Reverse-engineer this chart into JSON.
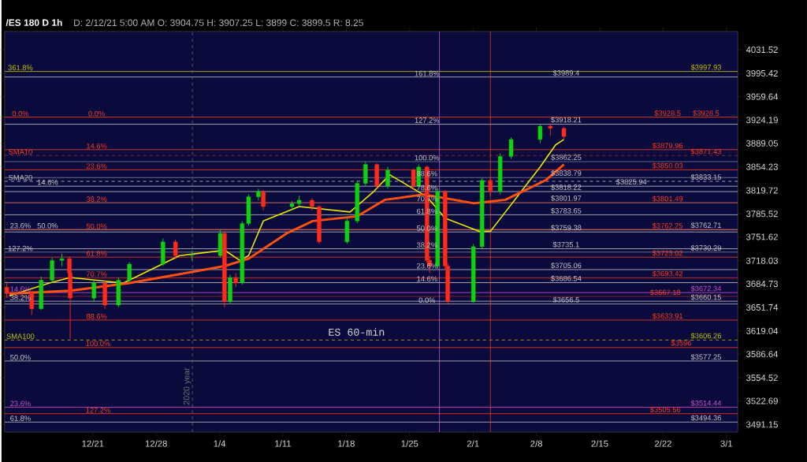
{
  "chart_data": {
    "type": "candlestick",
    "title": "/ES 180 D 1h",
    "subtitle": "D: 2/12/21 5:00 AM  O: 3904.75  H: 3907.25  L: 3899  C: 3899.5  R: 8.25",
    "x": [
      "2020-12-11T12:00",
      "2020-12-14T06:00",
      "2020-12-15T07:00",
      "2020-12-16T12:00",
      "2020-12-17T14:00",
      "2020-12-18T10:00",
      "2020-12-18T12:00",
      "2020-12-21T03:00",
      "2020-12-22T08:00",
      "2020-12-23T20:00",
      "2020-12-25T01:00",
      "2020-12-28T18:00",
      "2020-12-30T03:00",
      "2020-12-31T23:00",
      "2021-01-04T02:00",
      "2021-01-04T13:00",
      "2021-01-05T04:00",
      "2021-01-05T19:00",
      "2021-01-06T12:00",
      "2021-01-07T05:00",
      "2021-01-08T07:00",
      "2021-01-08T20:00",
      "2021-01-12T00:00",
      "2021-01-12T19:00",
      "2021-01-14T05:00",
      "2021-01-15T00:00",
      "2021-01-18T02:00",
      "2021-01-19T05:00",
      "2021-01-20T03:00",
      "2021-01-21T09:00",
      "2021-01-22T14:00",
      "2021-01-25T10:00",
      "2021-01-26T00:00",
      "2021-01-26T22:00",
      "2021-01-27T05:00",
      "2021-01-28T02:00",
      "2021-01-28T22:00",
      "2021-01-29T05:00",
      "2021-02-01T01:00",
      "2021-02-02T00:00",
      "2021-02-02T22:00",
      "2021-02-04T00:00",
      "2021-02-05T05:00",
      "2021-02-08T10:00",
      "2021-02-09T13:00",
      "2021-02-11T01:00"
    ],
    "ohlc": [
      [
        3680,
        3688,
        3665,
        3671
      ],
      [
        3671,
        3675,
        3641,
        3650
      ],
      [
        3650,
        3695,
        3648,
        3690
      ],
      [
        3690,
        3722,
        3686,
        3718
      ],
      [
        3718,
        3728,
        3710,
        3721
      ],
      [
        3721,
        3724,
        3696,
        3700
      ],
      [
        3700,
        3702,
        3608,
        3665
      ],
      [
        3665,
        3690,
        3660,
        3686
      ],
      [
        3686,
        3690,
        3650,
        3655
      ],
      [
        3655,
        3694,
        3652,
        3690
      ],
      [
        3690,
        3716,
        3686,
        3713
      ],
      [
        3713,
        3750,
        3710,
        3745
      ],
      [
        3745,
        3748,
        3720,
        3725
      ],
      [
        3725,
        3732,
        3718,
        3725
      ],
      [
        3725,
        3762,
        3722,
        3757
      ],
      [
        3757,
        3760,
        3652,
        3660
      ],
      [
        3660,
        3698,
        3656,
        3694
      ],
      [
        3694,
        3700,
        3680,
        3686
      ],
      [
        3686,
        3775,
        3684,
        3771
      ],
      [
        3771,
        3814,
        3768,
        3810
      ],
      [
        3810,
        3822,
        3805,
        3818
      ],
      [
        3818,
        3820,
        3790,
        3796
      ],
      [
        3796,
        3804,
        3790,
        3800
      ],
      [
        3800,
        3812,
        3796,
        3805
      ],
      [
        3805,
        3808,
        3790,
        3796
      ],
      [
        3796,
        3798,
        3742,
        3745
      ],
      [
        3745,
        3780,
        3742,
        3775
      ],
      [
        3775,
        3834,
        3772,
        3830
      ],
      [
        3830,
        3862,
        3826,
        3858
      ],
      [
        3858,
        3860,
        3822,
        3826
      ],
      [
        3826,
        3854,
        3822,
        3850
      ],
      [
        3850,
        3852,
        3820,
        3826
      ],
      [
        3826,
        3858,
        3824,
        3854
      ],
      [
        3854,
        3856,
        3714,
        3718
      ],
      [
        3718,
        3724,
        3700,
        3710
      ],
      [
        3710,
        3822,
        3706,
        3818
      ],
      [
        3818,
        3820,
        3706,
        3710
      ],
      [
        3710,
        3714,
        3656.5,
        3660
      ],
      [
        3660,
        3742,
        3658,
        3738
      ],
      [
        3738,
        3838,
        3734,
        3834
      ],
      [
        3834,
        3840,
        3812,
        3818
      ],
      [
        3818,
        3874,
        3814,
        3870
      ],
      [
        3870,
        3898,
        3866,
        3895
      ],
      [
        3895,
        3917,
        3890,
        3915
      ],
      [
        3915,
        3918.21,
        3900,
        3912
      ],
      [
        3912,
        3914,
        3896,
        3899.5
      ]
    ],
    "series": [
      {
        "type": "line",
        "color": "#e8e800",
        "x": [
          "2020-12-11T19:00",
          "2020-12-16T05:00",
          "2020-12-18T12:00",
          "2020-12-24T09:00",
          "2020-12-30T14:00",
          "2021-01-04T13:00",
          "2021-01-06T06:00",
          "2021-01-07T05:00",
          "2021-01-08T20:00",
          "2021-01-12T19:00",
          "2021-01-18T10:00",
          "2021-01-21T01:00",
          "2021-01-22T19:00",
          "2021-01-26T22:00",
          "2021-01-28T22:00",
          "2021-02-01T17:00",
          "2021-02-02T22:00",
          "2021-02-04T14:00",
          "2021-02-08T10:00",
          "2021-02-10T03:00",
          "2021-02-11T01:00"
        ],
        "values": [
          3668,
          3686,
          3694,
          3686,
          3725,
          3733,
          3718,
          3725,
          3775,
          3796,
          3788,
          3818,
          3843,
          3810,
          3779,
          3760,
          3760,
          3788,
          3854,
          3887,
          3895
        ]
      },
      {
        "type": "line",
        "color": "#ff5010",
        "x": [
          "2020-12-11T19:00",
          "2020-12-18T12:00",
          "2020-12-25T01:00",
          "2021-01-04T13:00",
          "2021-01-07T05:00",
          "2021-01-11T10:00",
          "2021-01-14T07:00",
          "2021-01-19T05:00",
          "2021-01-22T07:00",
          "2021-01-26T14:00",
          "2021-02-01T02:00",
          "2021-02-04T14:00",
          "2021-02-09T00:00",
          "2021-02-11T01:00"
        ],
        "values": [
          3671,
          3675,
          3686,
          3710,
          3721,
          3757,
          3775,
          3782,
          3806,
          3814,
          3801,
          3806,
          3834,
          3858
        ]
      }
    ],
    "log": "y",
    "xlim": [
      "2020-12-11T06:00",
      "2021-03-02T06:00"
    ],
    "ylim": [
      3481,
      4060
    ],
    "xticks": [
      {
        "value": "2020-12-21",
        "label": "12/21"
      },
      {
        "value": "2020-12-28",
        "label": "12/28"
      },
      {
        "value": "2021-01-04",
        "label": "1/4"
      },
      {
        "value": "2021-01-11",
        "label": "1/11"
      },
      {
        "value": "2021-01-18",
        "label": "1/18"
      },
      {
        "value": "2021-01-25",
        "label": "1/25"
      },
      {
        "value": "2021-02-01",
        "label": "2/1"
      },
      {
        "value": "2021-02-08",
        "label": "2/8"
      },
      {
        "value": "2021-02-15",
        "label": "2/15"
      },
      {
        "value": "2021-02-22",
        "label": "2/22"
      },
      {
        "value": "2021-03-01",
        "label": "3/1"
      }
    ],
    "yticks": [
      4031.52,
      3995.42,
      3959.64,
      3924.19,
      3889.05,
      3854.23,
      3819.72,
      3785.52,
      3751.62,
      3718.03,
      3684.73,
      3651.74,
      3619.04,
      3586.64,
      3554.52,
      3522.69,
      3491.15
    ],
    "ref_lines": [
      {
        "axis": "y",
        "value": 3997.93,
        "color": "#c8c800"
      },
      {
        "axis": "y",
        "value": 3989.4,
        "color": "#c8c8c8"
      },
      {
        "axis": "y",
        "value": 3928.5,
        "color": "#ff3c1e"
      },
      {
        "axis": "y",
        "value": 3918.21,
        "color": "#c8c8c8"
      },
      {
        "axis": "y",
        "value": 3879.96,
        "color": "#ff3c1e"
      },
      {
        "axis": "y",
        "value": 3871.43,
        "color": "#ff3c1e",
        "line_style": "dashed"
      },
      {
        "axis": "y",
        "value": 3862.25,
        "color": "#c8c8c8"
      },
      {
        "axis": "y",
        "value": 3850.03,
        "color": "#ff3c1e"
      },
      {
        "axis": "y",
        "value": 3838.79,
        "color": "#c8c8c8"
      },
      {
        "axis": "y",
        "value": 3833.15,
        "color": "#c8c8c8",
        "line_style": "dashed"
      },
      {
        "axis": "y",
        "value": 3825.94,
        "color": "#c8c8c8"
      },
      {
        "axis": "y",
        "value": 3818.22,
        "color": "#c8c8c8"
      },
      {
        "axis": "y",
        "value": 3801.97,
        "color": "#c8c8c8"
      },
      {
        "axis": "y",
        "value": 3801.49,
        "color": "#ff3c1e"
      },
      {
        "axis": "y",
        "value": 3783.65,
        "color": "#c8c8c8"
      },
      {
        "axis": "y",
        "value": 3762.71,
        "color": "#c8c8c8"
      },
      {
        "axis": "y",
        "value": 3762.25,
        "color": "#ff3c1e"
      },
      {
        "axis": "y",
        "value": 3759.38,
        "color": "#c8c8c8"
      },
      {
        "axis": "y",
        "value": 3735.1,
        "color": "#c8c8c8"
      },
      {
        "axis": "y",
        "value": 3730.29,
        "color": "#c8c8c8"
      },
      {
        "axis": "y",
        "value": 3723.02,
        "color": "#ff3c1e"
      },
      {
        "axis": "y",
        "value": 3705.06,
        "color": "#c8c8c8"
      },
      {
        "axis": "y",
        "value": 3693.42,
        "color": "#ff3c1e"
      },
      {
        "axis": "y",
        "value": 3686.54,
        "color": "#c8c8c8"
      },
      {
        "axis": "y",
        "value": 3672.34,
        "color": "#d050d0"
      },
      {
        "axis": "y",
        "value": 3667.18,
        "color": "#ff3c1e"
      },
      {
        "axis": "y",
        "value": 3660.15,
        "color": "#c8c8c8"
      },
      {
        "axis": "y",
        "value": 3656.5,
        "color": "#c8c8c8"
      },
      {
        "axis": "y",
        "value": 3633.91,
        "color": "#ff3c1e"
      },
      {
        "axis": "y",
        "value": 3606.26,
        "color": "#c8c800",
        "line_style": "dashed"
      },
      {
        "axis": "y",
        "value": 3596,
        "color": "#ff3c1e"
      },
      {
        "axis": "y",
        "value": 3577.25,
        "color": "#c8c8c8"
      },
      {
        "axis": "y",
        "value": 3514.44,
        "color": "#d050d0"
      },
      {
        "axis": "y",
        "value": 3505.56,
        "color": "#ff3c1e"
      },
      {
        "axis": "y",
        "value": 3494.36,
        "color": "#c8c8c8"
      },
      {
        "axis": "x",
        "value": "2021-01-01",
        "color": "#707070",
        "line_style": "dashed",
        "label": "2020 year"
      },
      {
        "axis": "x",
        "value": "2021-01-28T07:00",
        "color": "#e060e0"
      },
      {
        "axis": "x",
        "value": "2021-02-02T22:00",
        "color": "#ff3c1e"
      }
    ],
    "annotations": [
      "ES 60-min",
      {
        "text": "361.8%",
        "x": "2020-12-13",
        "y": 3997.93
      },
      {
        "text": "0.0%",
        "x": "2020-12-13",
        "y": 3928.5
      },
      {
        "text": "SMA10",
        "x": "2020-12-13",
        "y": 3871.43
      },
      {
        "text": "SMA20",
        "x": "2020-12-13",
        "y": 3833.15
      },
      {
        "text": "14.6%",
        "x": "2020-12-16",
        "y": 3825.94
      },
      {
        "text": "23.6%",
        "x": "2020-12-13",
        "y": 3762.71
      },
      {
        "text": "50.0%",
        "x": "2020-12-16",
        "y": 3762.71
      },
      {
        "text": "127.2%",
        "x": "2020-12-13",
        "y": 3730.29
      },
      {
        "text": "14.6%",
        "x": "2020-12-13",
        "y": 3672.34
      },
      {
        "text": "38.2%",
        "x": "2020-12-13",
        "y": 3660.15
      },
      {
        "text": "SMA100",
        "x": "2020-12-13",
        "y": 3606.26
      },
      {
        "text": "50.0%",
        "x": "2020-12-13",
        "y": 3577.25
      },
      {
        "text": "23.6%",
        "x": "2020-12-13",
        "y": 3514.44
      },
      {
        "text": "61.8%",
        "x": "2020-12-13",
        "y": 3494.36
      },
      {
        "text": "0.0%",
        "x": "2020-12-21T10:00",
        "y": 3928.5
      },
      {
        "text": "14.6%",
        "x": "2020-12-21T10:00",
        "y": 3879.96
      },
      {
        "text": "23.6%",
        "x": "2020-12-21T10:00",
        "y": 3850.03
      },
      {
        "text": "38.2%",
        "x": "2020-12-21T10:00",
        "y": 3801.49
      },
      {
        "text": "50.0%",
        "x": "2020-12-21T10:00",
        "y": 3762.25
      },
      {
        "text": "61.8%",
        "x": "2020-12-21T10:00",
        "y": 3723.02
      },
      {
        "text": "70.7%",
        "x": "2020-12-21T10:00",
        "y": 3693.42
      },
      {
        "text": "88.6%",
        "x": "2020-12-21T10:00",
        "y": 3633.91
      },
      {
        "text": "100.0%",
        "x": "2020-12-21T14:00",
        "y": 3596
      },
      {
        "text": "127.2%",
        "x": "2020-12-21T14:00",
        "y": 3505.56
      },
      {
        "text": "161.8%",
        "x": "2021-01-26T22:00",
        "y": 3989.4
      },
      {
        "text": "127.2%",
        "x": "2021-01-26T22:00",
        "y": 3918.21
      },
      {
        "text": "100.0%",
        "x": "2021-01-26T22:00",
        "y": 3862.25
      },
      {
        "text": "88.6%",
        "x": "2021-01-26T22:00",
        "y": 3838.79
      },
      {
        "text": "78.6%",
        "x": "2021-01-26T22:00",
        "y": 3818.22
      },
      {
        "text": "70.7%",
        "x": "2021-01-26T22:00",
        "y": 3801.97
      },
      {
        "text": "61.8%",
        "x": "2021-01-26T22:00",
        "y": 3783.65
      },
      {
        "text": "50.0%",
        "x": "2021-01-26T22:00",
        "y": 3759.38
      },
      {
        "text": "38.2%",
        "x": "2021-01-26T22:00",
        "y": 3735.1
      },
      {
        "text": "23.6%",
        "x": "2021-01-26T22:00",
        "y": 3705.06
      },
      {
        "text": "14.6%",
        "x": "2021-01-26T22:00",
        "y": 3686.54
      },
      {
        "text": "0.0%",
        "x": "2021-01-26T22:00",
        "y": 3656.5
      },
      {
        "text": "$3989.4",
        "x": "2021-02-11T07:00",
        "y": 3989.4
      },
      {
        "text": "$3918.21",
        "x": "2021-02-11T07:00",
        "y": 3918.21
      },
      {
        "text": "$3862.25",
        "x": "2021-02-11T07:00",
        "y": 3862.25
      },
      {
        "text": "$3838.79",
        "x": "2021-02-11T07:00",
        "y": 3838.79
      },
      {
        "text": "$3818.22",
        "x": "2021-02-11T07:00",
        "y": 3818.22
      },
      {
        "text": "$3801.97",
        "x": "2021-02-11T07:00",
        "y": 3801.97
      },
      {
        "text": "$3783.65",
        "x": "2021-02-11T07:00",
        "y": 3783.65
      },
      {
        "text": "$3759.38",
        "x": "2021-02-11T07:00",
        "y": 3759.38
      },
      {
        "text": "$3735.1",
        "x": "2021-02-11T07:00",
        "y": 3735.1
      },
      {
        "text": "$3705.06",
        "x": "2021-02-11T07:00",
        "y": 3705.06
      },
      {
        "text": "$3686.54",
        "x": "2021-02-11T07:00",
        "y": 3686.54
      },
      {
        "text": "$3656.5",
        "x": "2021-02-11T07:00",
        "y": 3656.5
      },
      {
        "text": "$3997.93",
        "x": "2021-02-26T18:00",
        "y": 3997.93
      },
      {
        "text": "$3928.5",
        "x": "2021-02-22T12:00",
        "y": 3928.5
      },
      {
        "text": "$3928.5",
        "x": "2021-02-26T18:00",
        "y": 3928.5
      },
      {
        "text": "$3879.96",
        "x": "2021-02-22T12:00",
        "y": 3879.96
      },
      {
        "text": "$3871.43",
        "x": "2021-02-26T18:00",
        "y": 3871.43
      },
      {
        "text": "$3850.03",
        "x": "2021-02-22T12:00",
        "y": 3850.03
      },
      {
        "text": "$3833.15",
        "x": "2021-02-26T18:00",
        "y": 3833.15
      },
      {
        "text": "$3825.94",
        "x": "2021-02-18T12:00",
        "y": 3825.94
      },
      {
        "text": "$3801.49",
        "x": "2021-02-22T12:00",
        "y": 3801.49
      },
      {
        "text": "$3762.25",
        "x": "2021-02-22T12:00",
        "y": 3762.25
      },
      {
        "text": "$3762.71",
        "x": "2021-02-26T18:00",
        "y": 3762.71
      },
      {
        "text": "$3730.29",
        "x": "2021-02-26T18:00",
        "y": 3730.29
      },
      {
        "text": "$3723.02",
        "x": "2021-02-22T12:00",
        "y": 3723.02
      },
      {
        "text": "$3693.42",
        "x": "2021-02-22T12:00",
        "y": 3693.42
      },
      {
        "text": "$3672.34",
        "x": "2021-02-26T18:00",
        "y": 3672.34
      },
      {
        "text": "$3667.18",
        "x": "2021-02-22T06:00",
        "y": 3667.18
      },
      {
        "text": "$3660.15",
        "x": "2021-02-26T18:00",
        "y": 3660.15
      },
      {
        "text": "$3633.91",
        "x": "2021-02-22T12:00",
        "y": 3633.91
      },
      {
        "text": "$3606.26",
        "x": "2021-02-26T18:00",
        "y": 3606.26
      },
      {
        "text": "$3596",
        "x": "2021-02-24T00:00",
        "y": 3596
      },
      {
        "text": "$3577.25",
        "x": "2021-02-26T18:00",
        "y": 3577.25
      },
      {
        "text": "$3514.44",
        "x": "2021-02-26T18:00",
        "y": 3514.44
      },
      {
        "text": "$3505.56",
        "x": "2021-02-22T06:00",
        "y": 3505.56
      },
      {
        "text": "$3494.36",
        "x": "2021-02-26T18:00",
        "y": 3494.36
      }
    ]
  }
}
